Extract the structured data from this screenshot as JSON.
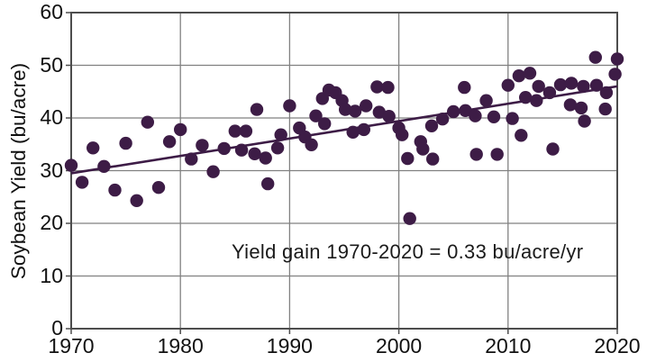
{
  "figure": {
    "y_axis_label": "Soybean Yield (bu/acre)",
    "annotation": "Yield gain 1970-2020 = 0.33 bu/acre/yr"
  },
  "chart_data": {
    "type": "scatter",
    "title": "",
    "xlabel": "",
    "ylabel": "Soybean Yield (bu/acre)",
    "xlim": [
      1970,
      2020
    ],
    "ylim": [
      0,
      60
    ],
    "x_ticks": [
      1970,
      1980,
      1990,
      2000,
      2010,
      2020
    ],
    "y_ticks": [
      0,
      10,
      20,
      30,
      40,
      50,
      60
    ],
    "grid": true,
    "legend": "none",
    "point_color": "#3d1c46",
    "line_color": "#3d1c46",
    "grid_color": "#818181",
    "border_color": "#4d4d4d",
    "annotation": {
      "text": "Yield gain 1970-2020 = 0.33 bu/acre/yr",
      "x": 1984.7,
      "y": 12.7
    },
    "trend_line": {
      "x1": 1970,
      "y1": 29.5,
      "x2": 2020,
      "y2": 46.0,
      "slope_bu_per_acre_per_yr": 0.33
    },
    "points": [
      [
        1970,
        31.0
      ],
      [
        1971,
        27.8
      ],
      [
        1972,
        34.3
      ],
      [
        1973,
        30.8
      ],
      [
        1974,
        26.3
      ],
      [
        1975,
        35.2
      ],
      [
        1976,
        24.3
      ],
      [
        1977,
        39.2
      ],
      [
        1978,
        26.8
      ],
      [
        1979,
        35.5
      ],
      [
        1980,
        37.8
      ],
      [
        1981,
        32.2
      ],
      [
        1982,
        34.8
      ],
      [
        1983,
        29.8
      ],
      [
        1984,
        34.2
      ],
      [
        1985,
        37.5
      ],
      [
        1985.6,
        33.9
      ],
      [
        1986,
        37.5
      ],
      [
        1986.8,
        33.2
      ],
      [
        1987,
        41.6
      ],
      [
        1987.8,
        32.4
      ],
      [
        1988,
        27.5
      ],
      [
        1988.9,
        34.3
      ],
      [
        1989.2,
        36.8
      ],
      [
        1990,
        42.3
      ],
      [
        1990.9,
        38.1
      ],
      [
        1991.4,
        36.4
      ],
      [
        1992,
        34.9
      ],
      [
        1992.4,
        40.4
      ],
      [
        1993,
        43.7
      ],
      [
        1993.2,
        38.9
      ],
      [
        1993.6,
        45.3
      ],
      [
        1994.2,
        44.8
      ],
      [
        1994.8,
        43.3
      ],
      [
        1995.1,
        41.6
      ],
      [
        1995.8,
        37.3
      ],
      [
        1996,
        41.3
      ],
      [
        1996.8,
        37.8
      ],
      [
        1997,
        42.3
      ],
      [
        1998,
        45.9
      ],
      [
        1998.2,
        41.1
      ],
      [
        1999,
        45.8
      ],
      [
        1999.1,
        40.3
      ],
      [
        2000,
        38.1
      ],
      [
        2000.3,
        36.8
      ],
      [
        2000.8,
        32.3
      ],
      [
        2001,
        20.9
      ],
      [
        2002,
        35.5
      ],
      [
        2002.2,
        34.1
      ],
      [
        2003,
        38.5
      ],
      [
        2003.1,
        32.2
      ],
      [
        2004,
        39.8
      ],
      [
        2005,
        41.2
      ],
      [
        2006,
        45.8
      ],
      [
        2006.1,
        41.4
      ],
      [
        2007,
        40.4
      ],
      [
        2007.1,
        33.1
      ],
      [
        2008,
        43.3
      ],
      [
        2008.7,
        40.2
      ],
      [
        2009,
        33.1
      ],
      [
        2010,
        46.2
      ],
      [
        2010.4,
        39.9
      ],
      [
        2011,
        48.0
      ],
      [
        2011.2,
        36.7
      ],
      [
        2011.6,
        43.9
      ],
      [
        2012,
        48.5
      ],
      [
        2012.6,
        43.3
      ],
      [
        2012.8,
        46.0
      ],
      [
        2013.8,
        44.8
      ],
      [
        2014.1,
        34.1
      ],
      [
        2014.8,
        46.3
      ],
      [
        2015.7,
        42.5
      ],
      [
        2015.8,
        46.6
      ],
      [
        2016.7,
        41.9
      ],
      [
        2016.9,
        46.0
      ],
      [
        2017,
        39.4
      ],
      [
        2018,
        51.5
      ],
      [
        2018.1,
        46.2
      ],
      [
        2018.9,
        41.7
      ],
      [
        2019,
        44.8
      ],
      [
        2019.8,
        48.3
      ],
      [
        2020,
        51.2
      ]
    ]
  }
}
